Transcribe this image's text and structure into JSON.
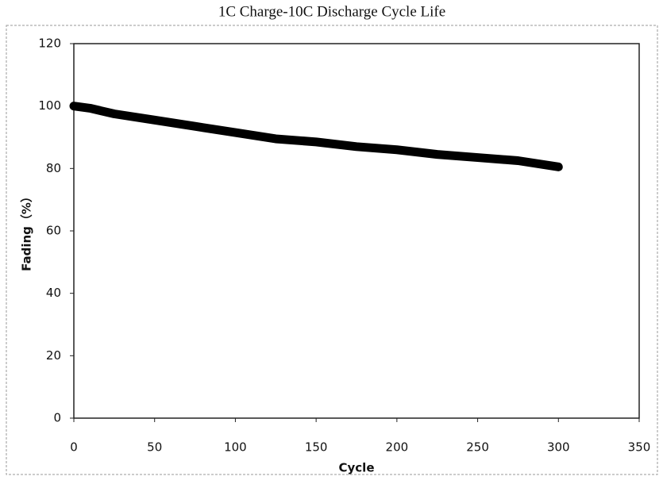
{
  "chart_data": {
    "type": "line",
    "title": "1C Charge-10C Discharge Cycle Life",
    "x_label": "Cycle",
    "y_label": "Fading（%）",
    "x": [
      0,
      10,
      25,
      50,
      75,
      100,
      125,
      150,
      175,
      200,
      225,
      250,
      275,
      300
    ],
    "values": [
      100,
      99.3,
      97.5,
      95.5,
      93.5,
      91.5,
      89.5,
      88.5,
      87,
      86,
      84.5,
      83.5,
      82.5,
      80.5
    ],
    "color": "#000000",
    "xlim": [
      0,
      350
    ],
    "xticks": [
      0,
      50,
      100,
      150,
      200,
      250,
      300,
      350
    ],
    "ylim": [
      0,
      120
    ],
    "yticks": [
      0,
      20,
      40,
      60,
      80,
      100,
      120
    ],
    "grid": false
  }
}
